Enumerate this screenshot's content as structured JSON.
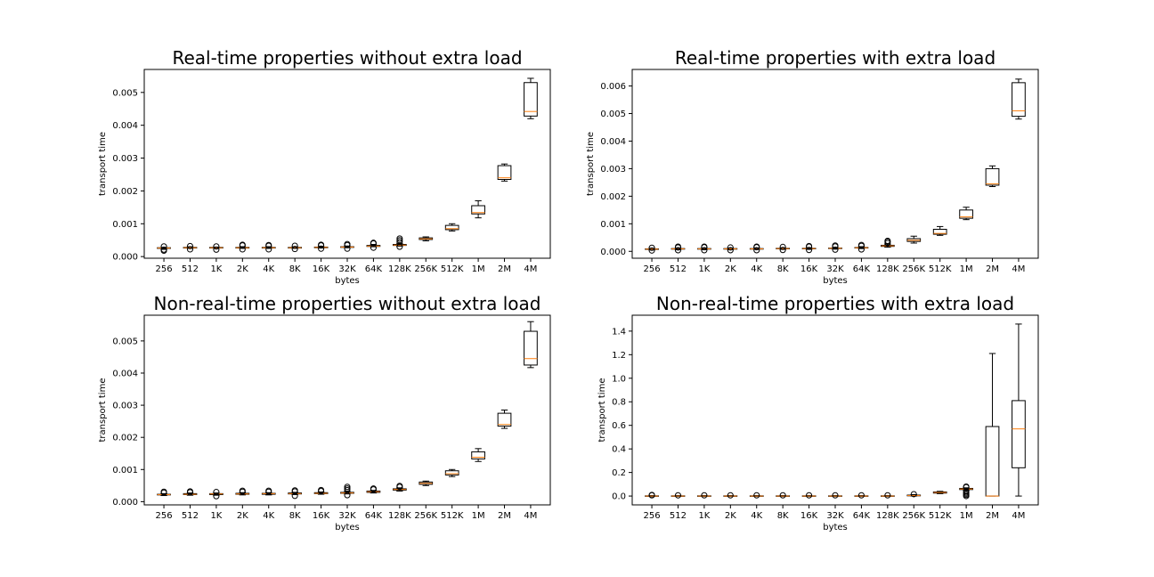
{
  "chart_data": [
    {
      "type": "box",
      "title": "Real-time properties without extra load",
      "xlabel": "bytes",
      "ylabel": "transport time",
      "categories": [
        "256",
        "512",
        "1K",
        "2K",
        "4K",
        "8K",
        "16K",
        "32K",
        "64K",
        "128K",
        "256K",
        "512K",
        "1M",
        "2M",
        "4M"
      ],
      "ylim": [
        -5e-05,
        0.0057
      ],
      "yticks": [
        0.0,
        0.001,
        0.002,
        0.003,
        0.004,
        0.005
      ],
      "ytick_labels": [
        "0.000",
        "0.001",
        "0.002",
        "0.003",
        "0.004",
        "0.005"
      ],
      "boxes": [
        {
          "min": 0.00022,
          "q1": 0.00025,
          "median": 0.00026,
          "q3": 0.00027,
          "max": 0.00028,
          "fliers": [
            0.00018,
            0.00021,
            0.00031
          ]
        },
        {
          "min": 0.00025,
          "q1": 0.00026,
          "median": 0.00027,
          "q3": 0.00028,
          "max": 0.0003,
          "fliers": [
            0.00022,
            0.00032
          ]
        },
        {
          "min": 0.00025,
          "q1": 0.00026,
          "median": 0.00027,
          "q3": 0.00028,
          "max": 0.00029,
          "fliers": [
            0.00021,
            0.00031
          ]
        },
        {
          "min": 0.00025,
          "q1": 0.00026,
          "median": 0.00027,
          "q3": 0.00028,
          "max": 0.0003,
          "fliers": [
            0.00022,
            0.00034,
            0.00036
          ]
        },
        {
          "min": 0.00025,
          "q1": 0.00026,
          "median": 0.00027,
          "q3": 0.00028,
          "max": 0.0003,
          "fliers": [
            0.00022,
            0.00033,
            0.00035
          ]
        },
        {
          "min": 0.00025,
          "q1": 0.00026,
          "median": 0.00027,
          "q3": 0.00028,
          "max": 0.0003,
          "fliers": [
            0.00023,
            0.00033
          ]
        },
        {
          "min": 0.00026,
          "q1": 0.00027,
          "median": 0.00028,
          "q3": 0.00029,
          "max": 0.00031,
          "fliers": [
            0.00024,
            0.00034,
            0.00036
          ]
        },
        {
          "min": 0.00027,
          "q1": 0.00028,
          "median": 0.00029,
          "q3": 0.0003,
          "max": 0.00032,
          "fliers": [
            0.00024,
            0.00035,
            0.00038
          ]
        },
        {
          "min": 0.0003,
          "q1": 0.00031,
          "median": 0.00032,
          "q3": 0.00034,
          "max": 0.00037,
          "fliers": [
            0.00027,
            0.0004,
            0.00042
          ]
        },
        {
          "min": 0.00032,
          "q1": 0.00034,
          "median": 0.00035,
          "q3": 0.00037,
          "max": 0.0004,
          "fliers": [
            0.0003,
            0.00045,
            0.0005,
            0.00055
          ]
        },
        {
          "min": 0.00048,
          "q1": 0.00052,
          "median": 0.00054,
          "q3": 0.00057,
          "max": 0.0006,
          "fliers": []
        },
        {
          "min": 0.00078,
          "q1": 0.00082,
          "median": 0.00085,
          "q3": 0.00095,
          "max": 0.001,
          "fliers": []
        },
        {
          "min": 0.00118,
          "q1": 0.0013,
          "median": 0.00134,
          "q3": 0.00155,
          "max": 0.0017,
          "fliers": []
        },
        {
          "min": 0.0023,
          "q1": 0.00235,
          "median": 0.0024,
          "q3": 0.00277,
          "max": 0.00282,
          "fliers": []
        },
        {
          "min": 0.0042,
          "q1": 0.00428,
          "median": 0.00442,
          "q3": 0.0053,
          "max": 0.00543,
          "fliers": []
        }
      ]
    },
    {
      "type": "box",
      "title": "Real-time properties with extra load",
      "xlabel": "bytes",
      "ylabel": "transport time",
      "categories": [
        "256",
        "512",
        "1K",
        "2K",
        "4K",
        "8K",
        "16K",
        "32K",
        "64K",
        "128K",
        "256K",
        "512K",
        "1M",
        "2M",
        "4M"
      ],
      "ylim": [
        -0.00025,
        0.0066
      ],
      "yticks": [
        0.0,
        0.001,
        0.002,
        0.003,
        0.004,
        0.005,
        0.006
      ],
      "ytick_labels": [
        "0.000",
        "0.001",
        "0.002",
        "0.003",
        "0.004",
        "0.005",
        "0.006"
      ],
      "boxes": [
        {
          "min": 5e-05,
          "q1": 7e-05,
          "median": 8e-05,
          "q3": 9e-05,
          "max": 0.00011,
          "fliers": [
            3e-05,
            0.00013
          ]
        },
        {
          "min": 6e-05,
          "q1": 8e-05,
          "median": 9e-05,
          "q3": 0.0001,
          "max": 0.00012,
          "fliers": [
            4e-05,
            0.00014,
            0.00017
          ]
        },
        {
          "min": 6e-05,
          "q1": 8e-05,
          "median": 9e-05,
          "q3": 0.0001,
          "max": 0.00012,
          "fliers": [
            4e-05,
            0.00015,
            0.00017
          ]
        },
        {
          "min": 6e-05,
          "q1": 8e-05,
          "median": 9e-05,
          "q3": 0.0001,
          "max": 0.00012,
          "fliers": [
            4e-05,
            0.00014
          ]
        },
        {
          "min": 7e-05,
          "q1": 8e-05,
          "median": 9e-05,
          "q3": 0.0001,
          "max": 0.00012,
          "fliers": [
            4e-05,
            0.00015,
            0.00017
          ]
        },
        {
          "min": 7e-05,
          "q1": 9e-05,
          "median": 0.0001,
          "q3": 0.00011,
          "max": 0.00013,
          "fliers": [
            5e-05,
            0.00016
          ]
        },
        {
          "min": 7e-05,
          "q1": 9e-05,
          "median": 0.0001,
          "q3": 0.00011,
          "max": 0.00013,
          "fliers": [
            5e-05,
            0.00017,
            0.00019
          ]
        },
        {
          "min": 8e-05,
          "q1": 0.0001,
          "median": 0.00011,
          "q3": 0.00012,
          "max": 0.00014,
          "fliers": [
            6e-05,
            0.00018,
            0.00021
          ]
        },
        {
          "min": 0.0001,
          "q1": 0.00012,
          "median": 0.00013,
          "q3": 0.00014,
          "max": 0.00017,
          "fliers": [
            7e-05,
            0.0002,
            0.00023
          ]
        },
        {
          "min": 0.00015,
          "q1": 0.00018,
          "median": 0.0002,
          "q3": 0.00022,
          "max": 0.00026,
          "fliers": [
            0.0003,
            0.00035,
            0.00038
          ]
        },
        {
          "min": 0.0003,
          "q1": 0.00036,
          "median": 0.0004,
          "q3": 0.00046,
          "max": 0.00055,
          "fliers": []
        },
        {
          "min": 0.00058,
          "q1": 0.00062,
          "median": 0.00065,
          "q3": 0.0008,
          "max": 0.0009,
          "fliers": []
        },
        {
          "min": 0.00115,
          "q1": 0.0012,
          "median": 0.00125,
          "q3": 0.0015,
          "max": 0.0016,
          "fliers": []
        },
        {
          "min": 0.00235,
          "q1": 0.0024,
          "median": 0.00245,
          "q3": 0.003,
          "max": 0.0031,
          "fliers": []
        },
        {
          "min": 0.0048,
          "q1": 0.0049,
          "median": 0.0051,
          "q3": 0.00612,
          "max": 0.00625,
          "fliers": []
        }
      ]
    },
    {
      "type": "box",
      "title": "Non-real-time properties without extra load",
      "xlabel": "bytes",
      "ylabel": "transport time",
      "categories": [
        "256",
        "512",
        "1K",
        "2K",
        "4K",
        "8K",
        "16K",
        "32K",
        "64K",
        "128K",
        "256K",
        "512K",
        "1M",
        "2M",
        "4M"
      ],
      "ylim": [
        -0.0001,
        0.0058
      ],
      "yticks": [
        0.0,
        0.001,
        0.002,
        0.003,
        0.004,
        0.005
      ],
      "ytick_labels": [
        "0.000",
        "0.001",
        "0.002",
        "0.003",
        "0.004",
        "0.005"
      ],
      "boxes": [
        {
          "min": 0.00019,
          "q1": 0.00021,
          "median": 0.00022,
          "q3": 0.00023,
          "max": 0.00025,
          "fliers": [
            0.00028,
            0.00031
          ]
        },
        {
          "min": 0.0002,
          "q1": 0.00022,
          "median": 0.00023,
          "q3": 0.00025,
          "max": 0.00027,
          "fliers": [
            0.00029,
            0.00032
          ]
        },
        {
          "min": 0.0002,
          "q1": 0.00022,
          "median": 0.00024,
          "q3": 0.00025,
          "max": 0.00027,
          "fliers": [
            0.00017,
            0.0003
          ]
        },
        {
          "min": 0.00021,
          "q1": 0.00023,
          "median": 0.00024,
          "q3": 0.00026,
          "max": 0.00028,
          "fliers": [
            0.00031,
            0.00034
          ]
        },
        {
          "min": 0.00021,
          "q1": 0.00023,
          "median": 0.00025,
          "q3": 0.00026,
          "max": 0.00028,
          "fliers": [
            0.00031,
            0.00034
          ]
        },
        {
          "min": 0.00022,
          "q1": 0.00024,
          "median": 0.00025,
          "q3": 0.00027,
          "max": 0.00029,
          "fliers": [
            0.00018,
            0.00032,
            0.00035
          ]
        },
        {
          "min": 0.00023,
          "q1": 0.00025,
          "median": 0.00026,
          "q3": 0.00028,
          "max": 0.0003,
          "fliers": [
            0.00033,
            0.00036
          ]
        },
        {
          "min": 0.00024,
          "q1": 0.00026,
          "median": 0.00027,
          "q3": 0.00029,
          "max": 0.00031,
          "fliers": [
            0.0002,
            0.00036,
            0.00041,
            0.00046
          ]
        },
        {
          "min": 0.00027,
          "q1": 0.00029,
          "median": 0.00031,
          "q3": 0.00033,
          "max": 0.00035,
          "fliers": [
            0.00038,
            0.00041
          ]
        },
        {
          "min": 0.00033,
          "q1": 0.00036,
          "median": 0.00038,
          "q3": 0.0004,
          "max": 0.00043,
          "fliers": [
            0.00046,
            0.00049
          ]
        },
        {
          "min": 0.0005,
          "q1": 0.00054,
          "median": 0.00057,
          "q3": 0.00061,
          "max": 0.00064,
          "fliers": []
        },
        {
          "min": 0.00078,
          "q1": 0.00083,
          "median": 0.00087,
          "q3": 0.00096,
          "max": 0.001,
          "fliers": []
        },
        {
          "min": 0.00125,
          "q1": 0.00133,
          "median": 0.00138,
          "q3": 0.00155,
          "max": 0.00165,
          "fliers": []
        },
        {
          "min": 0.00228,
          "q1": 0.00235,
          "median": 0.0024,
          "q3": 0.00275,
          "max": 0.00285,
          "fliers": []
        },
        {
          "min": 0.00417,
          "q1": 0.00425,
          "median": 0.00445,
          "q3": 0.0053,
          "max": 0.0056,
          "fliers": []
        }
      ]
    },
    {
      "type": "box",
      "title": "Non-real-time properties with extra load",
      "xlabel": "bytes",
      "ylabel": "transport time",
      "categories": [
        "256",
        "512",
        "1K",
        "2K",
        "4K",
        "8K",
        "16K",
        "32K",
        "64K",
        "128K",
        "256K",
        "512K",
        "1M",
        "2M",
        "4M"
      ],
      "ylim": [
        -0.075,
        1.535
      ],
      "yticks": [
        0.0,
        0.2,
        0.4,
        0.6,
        0.8,
        1.0,
        1.2,
        1.4
      ],
      "ytick_labels": [
        "0.0",
        "0.2",
        "0.4",
        "0.6",
        "0.8",
        "1.0",
        "1.2",
        "1.4"
      ],
      "boxes": [
        {
          "min": 0.0,
          "q1": 0.0,
          "median": 0.0,
          "q3": 0.002,
          "max": 0.004,
          "fliers": [
            0.006,
            0.009
          ]
        },
        {
          "min": 0.0,
          "q1": 0.0,
          "median": 0.0,
          "q3": 0.002,
          "max": 0.004,
          "fliers": [
            0.006
          ]
        },
        {
          "min": 0.0,
          "q1": 0.0,
          "median": 0.0,
          "q3": 0.002,
          "max": 0.004,
          "fliers": [
            0.006
          ]
        },
        {
          "min": 0.0,
          "q1": 0.0,
          "median": 0.0,
          "q3": 0.002,
          "max": 0.004,
          "fliers": [
            0.006
          ]
        },
        {
          "min": 0.0,
          "q1": 0.0,
          "median": 0.0,
          "q3": 0.002,
          "max": 0.004,
          "fliers": [
            0.006
          ]
        },
        {
          "min": 0.0,
          "q1": 0.0,
          "median": 0.0,
          "q3": 0.002,
          "max": 0.004,
          "fliers": [
            0.006
          ]
        },
        {
          "min": 0.0,
          "q1": 0.0,
          "median": 0.0,
          "q3": 0.002,
          "max": 0.004,
          "fliers": [
            0.006
          ]
        },
        {
          "min": 0.0,
          "q1": 0.0,
          "median": 0.0,
          "q3": 0.002,
          "max": 0.004,
          "fliers": [
            0.006
          ]
        },
        {
          "min": 0.0,
          "q1": 0.0,
          "median": 0.0,
          "q3": 0.002,
          "max": 0.004,
          "fliers": [
            0.006
          ]
        },
        {
          "min": 0.0,
          "q1": 0.0,
          "median": 0.0,
          "q3": 0.002,
          "max": 0.004,
          "fliers": [
            0.006
          ]
        },
        {
          "min": 0.0,
          "q1": 0.002,
          "median": 0.004,
          "q3": 0.008,
          "max": 0.012,
          "fliers": [
            0.016
          ]
        },
        {
          "min": 0.02,
          "q1": 0.025,
          "median": 0.03,
          "q3": 0.035,
          "max": 0.04,
          "fliers": []
        },
        {
          "min": 0.05,
          "q1": 0.055,
          "median": 0.06,
          "q3": 0.065,
          "max": 0.07,
          "fliers": [
            0.0,
            0.01,
            0.02,
            0.03,
            0.04,
            0.075,
            0.08
          ]
        },
        {
          "min": 0.0,
          "q1": 0.0,
          "median": 0.0,
          "q3": 0.59,
          "max": 1.21,
          "fliers": []
        },
        {
          "min": 0.0,
          "q1": 0.24,
          "median": 0.57,
          "q3": 0.81,
          "max": 1.46,
          "fliers": []
        }
      ]
    }
  ]
}
